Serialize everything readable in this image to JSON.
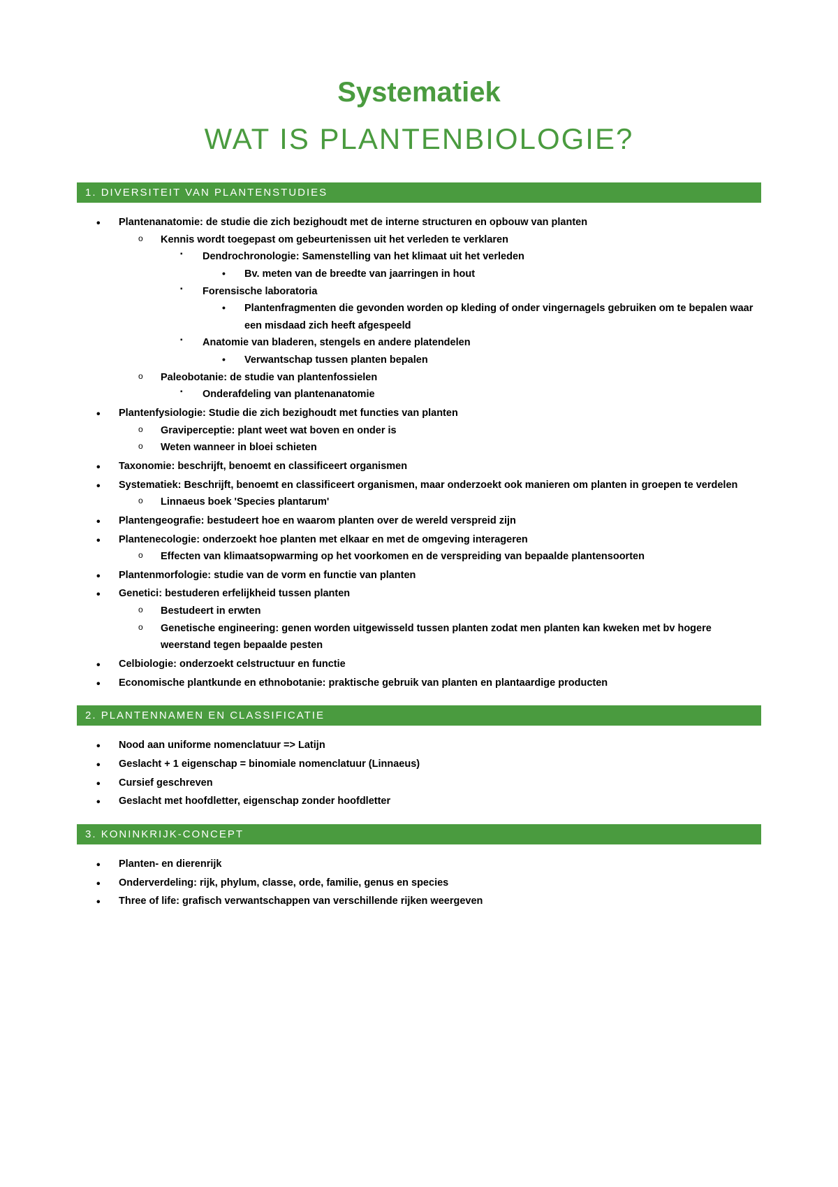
{
  "colors": {
    "accent": "#4a9b3f",
    "background": "#ffffff",
    "text": "#000000",
    "bar_text": "#ffffff"
  },
  "typography": {
    "title_fontsize": 40,
    "subtitle_fontsize": 42,
    "body_fontsize": 14.5,
    "bar_fontsize": 15,
    "body_weight": "bold",
    "title_weight": "bold"
  },
  "main_title": "Systematiek",
  "sub_title": "WAT IS PLANTENBIOLOGIE?",
  "sections": [
    {
      "number": "1.",
      "heading": "DIVERSITEIT VAN PLANTENSTUDIES",
      "items": [
        {
          "text": "Plantenanatomie: de studie die zich bezighoudt met de interne structuren en opbouw van planten",
          "children": [
            {
              "text": "Kennis wordt toegepast om gebeurtenissen uit het verleden te verklaren",
              "children": [
                {
                  "text": "Dendrochronologie: Samenstelling van het klimaat uit het verleden",
                  "children": [
                    {
                      "text": "Bv. meten van de breedte van jaarringen in hout"
                    }
                  ]
                },
                {
                  "text": "Forensische laboratoria",
                  "children": [
                    {
                      "text": "Plantenfragmenten die gevonden worden op kleding of onder vingernagels gebruiken om te bepalen waar een misdaad zich heeft afgespeeld"
                    }
                  ]
                },
                {
                  "text": "Anatomie van bladeren, stengels en andere platendelen",
                  "children": [
                    {
                      "text": "Verwantschap tussen planten bepalen"
                    }
                  ]
                }
              ]
            },
            {
              "text": "Paleobotanie: de studie van plantenfossielen",
              "children": [
                {
                  "text": "Onderafdeling van plantenanatomie"
                }
              ]
            }
          ]
        },
        {
          "text": "Plantenfysiologie: Studie die zich bezighoudt met functies van planten",
          "children": [
            {
              "text": "Graviperceptie: plant weet wat boven en onder is"
            },
            {
              "text": "Weten wanneer in bloei schieten"
            }
          ]
        },
        {
          "text": "Taxonomie: beschrijft, benoemt en classificeert organismen"
        },
        {
          "text": "Systematiek: Beschrijft, benoemt en classificeert organismen, maar onderzoekt ook manieren om planten in groepen te verdelen",
          "children": [
            {
              "text": "Linnaeus boek 'Species plantarum'"
            }
          ]
        },
        {
          "text": "Plantengeografie: bestudeert hoe en waarom planten over de wereld verspreid zijn"
        },
        {
          "text": "Plantenecologie: onderzoekt hoe planten met elkaar en met de omgeving interageren",
          "children": [
            {
              "text": "Effecten van klimaatsopwarming op het voorkomen en de verspreiding van bepaalde plantensoorten"
            }
          ]
        },
        {
          "text": "Plantenmorfologie: studie van de vorm en functie van planten"
        },
        {
          "text": "Genetici: bestuderen erfelijkheid tussen planten",
          "children": [
            {
              "text": "Bestudeert in erwten"
            },
            {
              "text": "Genetische engineering: genen worden uitgewisseld tussen planten zodat men planten kan kweken met bv hogere weerstand tegen bepaalde pesten"
            }
          ]
        },
        {
          "text": "Celbiologie: onderzoekt celstructuur en functie"
        },
        {
          "text": "Economische plantkunde en ethnobotanie: praktische gebruik van planten en plantaardige producten"
        }
      ]
    },
    {
      "number": "2.",
      "heading": "PLANTENNAMEN EN CLASSIFICATIE",
      "items": [
        {
          "text": "Nood aan uniforme nomenclatuur => Latijn"
        },
        {
          "text": "Geslacht + 1 eigenschap = binomiale nomenclatuur (Linnaeus)"
        },
        {
          "text": "Cursief geschreven"
        },
        {
          "text": "Geslacht met hoofdletter, eigenschap zonder hoofdletter"
        }
      ]
    },
    {
      "number": "3.",
      "heading": "KONINKRIJK-CONCEPT",
      "items": [
        {
          "text": "Planten- en dierenrijk"
        },
        {
          "text": "Onderverdeling: rijk, phylum, classe, orde, familie, genus en species"
        },
        {
          "text": "Three of life: grafisch verwantschappen van verschillende rijken weergeven"
        }
      ]
    }
  ]
}
